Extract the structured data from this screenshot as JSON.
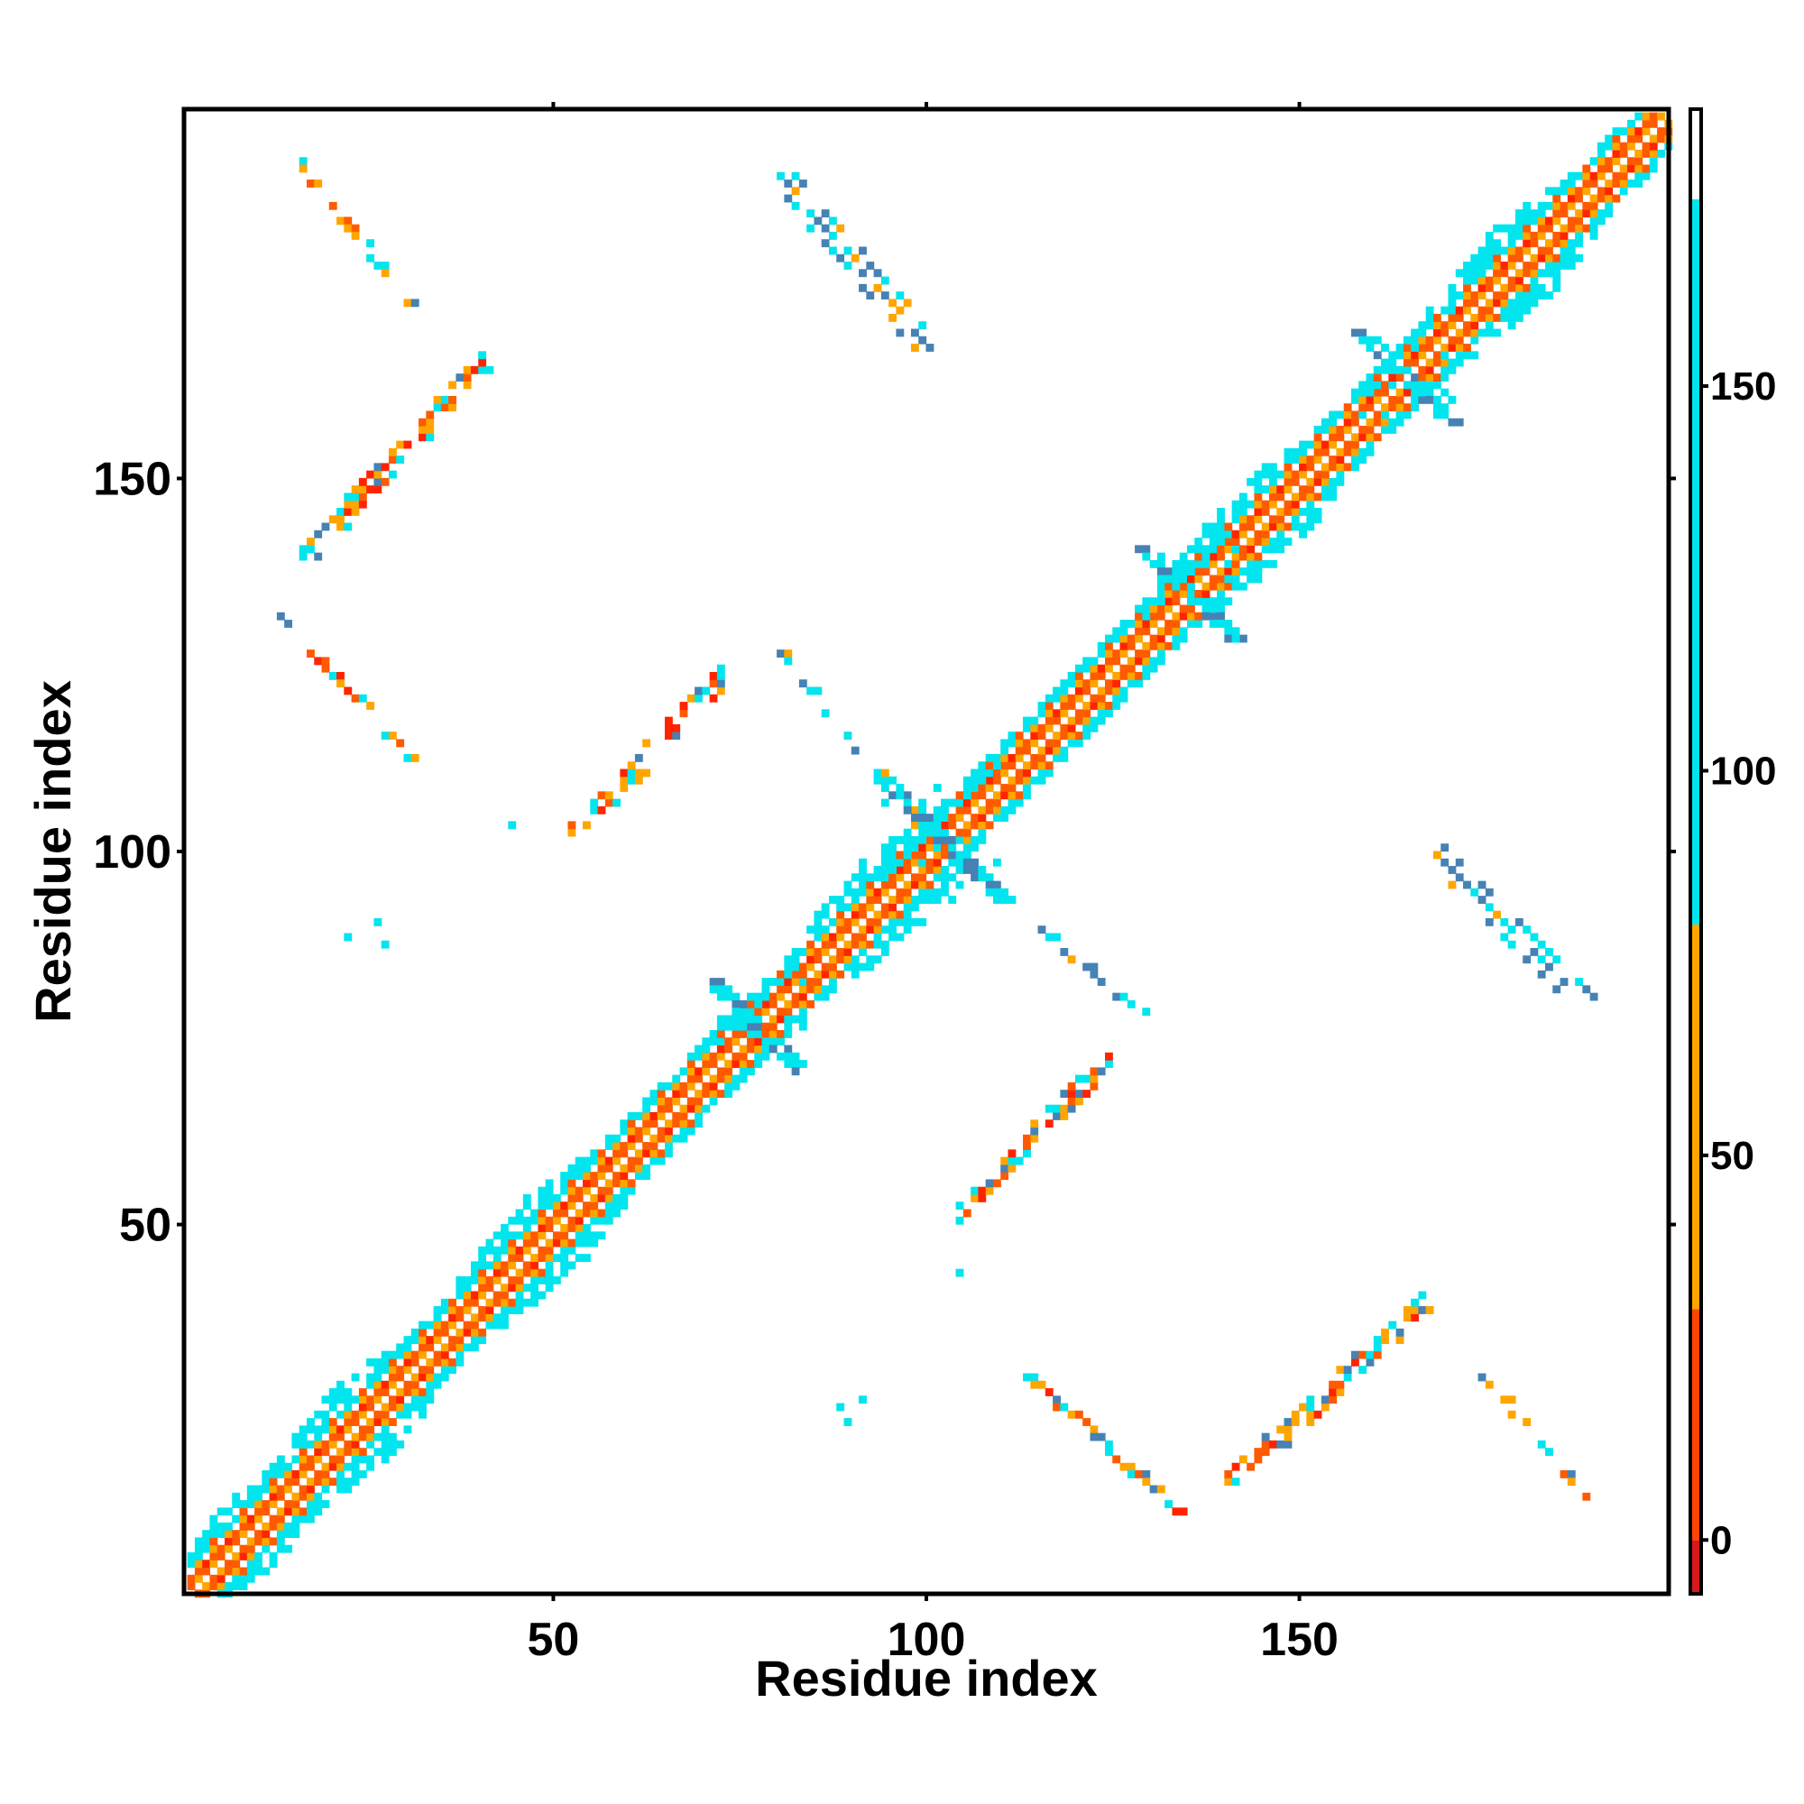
{
  "chart_data": {
    "type": "heatmap",
    "title": "",
    "xlabel": "Residue index",
    "ylabel": "Residue index",
    "n_residues": 199,
    "xlim": [
      1,
      199
    ],
    "ylim": [
      1,
      199
    ],
    "x_ticks": [
      50,
      100,
      150
    ],
    "y_ticks": [
      50,
      100,
      150
    ],
    "x_tick_labels": [
      "50",
      "100",
      "150"
    ],
    "y_tick_labels": [
      "50",
      "100",
      "150"
    ],
    "colorbar": {
      "range": [
        -7,
        186
      ],
      "ticks": [
        0,
        50,
        100,
        150
      ],
      "tick_labels": [
        "0",
        "50",
        "100",
        "150"
      ],
      "bands": [
        {
          "from": -7,
          "to": 0,
          "color": "#d7191c"
        },
        {
          "from": 0,
          "to": 30,
          "color": "#ff4500"
        },
        {
          "from": 30,
          "to": 80,
          "color": "#ffa500"
        },
        {
          "from": 80,
          "to": 175,
          "color": "#00e5ee"
        },
        {
          "from": 175,
          "to": 186,
          "color": "#4682b4"
        }
      ]
    },
    "palette": {
      "diag": "#ffffff",
      "red": "#ff2400",
      "orange_red": "#ff5a00",
      "orange": "#ffa500",
      "cyan": "#00e5ee",
      "steel_blue": "#4682b4"
    },
    "features": {
      "main_diagonal": {
        "from": 1,
        "to": 199
      },
      "helix_bulges": [
        {
          "center": 5,
          "width": 2
        },
        {
          "center": 20,
          "width": 3
        },
        {
          "center": 45,
          "width": 3
        },
        {
          "center": 90,
          "width": 3
        },
        {
          "center": 140,
          "width": 3
        },
        {
          "center": 175,
          "width": 3
        }
      ],
      "junctions": [
        {
          "center": 77,
          "arm": 6,
          "color": "cyan"
        },
        {
          "center": 102,
          "arm": 8,
          "color": "cyan"
        },
        {
          "center": 135,
          "arm": 6,
          "color": "cyan"
        },
        {
          "center": 164,
          "arm": 6,
          "color": "cyan"
        }
      ],
      "parallel_contacts": [
        {
          "x": [
            16,
            40
          ],
          "y": [
            140,
            166
          ],
          "color": "mixed"
        },
        {
          "x": [
            52,
            72
          ],
          "y": [
            103,
            124
          ],
          "color": "mixed"
        },
        {
          "x": [
            104,
            124
          ],
          "y": [
            52,
            73
          ],
          "color": "mixed"
        },
        {
          "x": [
            140,
            166
          ],
          "y": [
            16,
            40
          ],
          "color": "mixed"
        }
      ],
      "antiparallel_contacts": [
        {
          "x": [
            15,
            30
          ],
          "y": [
            193,
            174
          ],
          "color": "mixed"
        },
        {
          "x": [
            12,
            30
          ],
          "y": [
            133,
            113
          ],
          "color": "mixed"
        },
        {
          "x": [
            79,
            100
          ],
          "y": [
            128,
            102
          ],
          "color": "blue"
        },
        {
          "x": [
            102,
            128
          ],
          "y": [
            100,
            79
          ],
          "color": "blue"
        },
        {
          "x": [
            113,
            133
          ],
          "y": [
            30,
            12
          ],
          "color": "mixed"
        },
        {
          "x": [
            174,
            188
          ],
          "y": [
            30,
            14
          ],
          "color": "mixed"
        }
      ],
      "blob_contacts": [
        {
          "x": [
            80,
            100
          ],
          "y": [
            191,
            168
          ],
          "color": "blue"
        },
        {
          "x": [
            168,
            188
          ],
          "y": [
            100,
            80
          ],
          "color": "blue"
        }
      ],
      "isolated_contacts": [
        {
          "x": 26,
          "y": 91
        },
        {
          "x": 27,
          "y": 88
        },
        {
          "x": 22,
          "y": 89
        },
        {
          "x": 88,
          "y": 26
        },
        {
          "x": 91,
          "y": 27
        },
        {
          "x": 89,
          "y": 24
        },
        {
          "x": 44,
          "y": 104
        },
        {
          "x": 104,
          "y": 44
        }
      ]
    }
  }
}
